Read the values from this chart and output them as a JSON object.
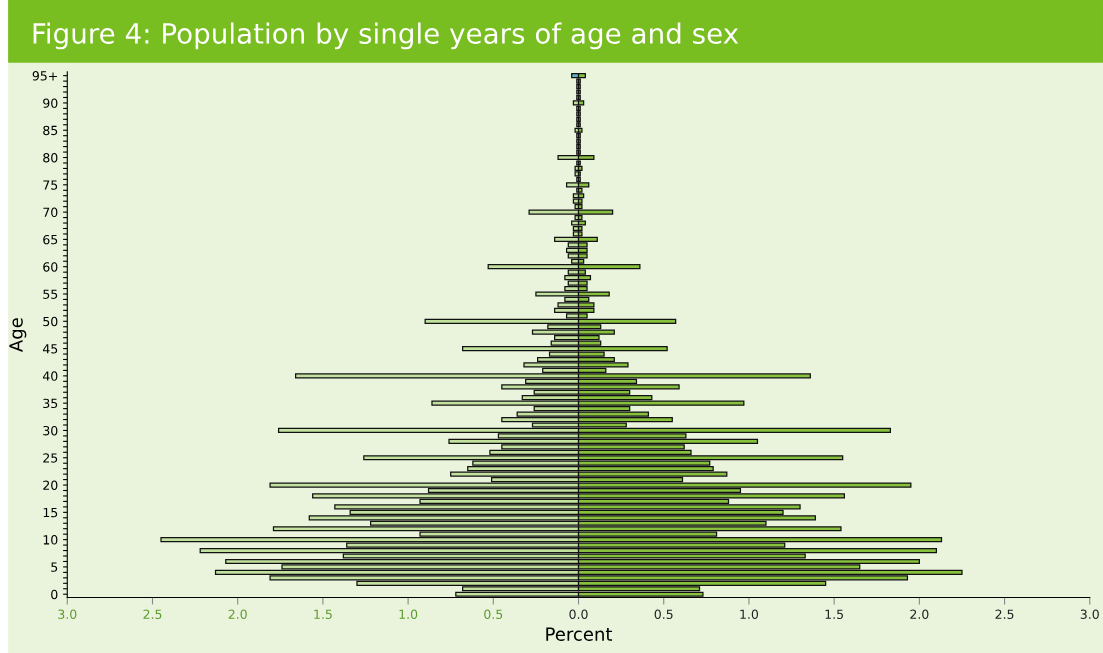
{
  "chart_data": {
    "type": "bar",
    "orientation": "horizontal",
    "title": "Figure 4: Population by single years of age and sex",
    "xlabel": "Percent",
    "ylabel": "Age",
    "categories": [
      "95+",
      null,
      null,
      null,
      null,
      "90",
      null,
      null,
      null,
      null,
      "85",
      null,
      null,
      null,
      null,
      "80",
      null,
      null,
      null,
      null,
      "75",
      null,
      null,
      null,
      null,
      "70",
      null,
      null,
      null,
      null,
      "65",
      null,
      null,
      null,
      null,
      "60",
      null,
      null,
      null,
      null,
      "55",
      null,
      null,
      null,
      null,
      "50",
      null,
      null,
      null,
      null,
      "45",
      null,
      null,
      null,
      null,
      "40",
      null,
      null,
      null,
      null,
      "35",
      null,
      null,
      null,
      null,
      "30",
      null,
      null,
      null,
      null,
      "25",
      null,
      null,
      null,
      null,
      "20",
      null,
      null,
      null,
      null,
      "15",
      null,
      null,
      null,
      null,
      "10",
      null,
      null,
      null,
      null,
      "5",
      null,
      null,
      null,
      null,
      "0"
    ],
    "series": [
      {
        "color": "#c3e19e",
        "colors": [
          "#5bb5c9",
          "#c3e19e",
          "#c3e19e",
          "#c3e19e",
          "#c3e19e",
          "#c3e19e",
          "#c3e19e",
          "#c3e19e",
          "#c3e19e",
          "#c3e19e",
          "#c3e19e",
          "#c3e19e",
          "#c3e19e",
          "#c3e19e",
          "#c3e19e",
          "#c3e19e",
          "#c3e19e",
          "#c3e19e",
          "#c3e19e",
          "#c3e19e",
          "#c3e19e",
          "#c3e19e",
          "#c3e19e",
          "#c3e19e",
          "#c3e19e",
          "#c3e19e",
          "#c3e19e",
          "#c3e19e",
          "#c3e19e",
          "#c3e19e",
          "#c3e19e",
          "#c3e19e",
          "#c3e19e",
          "#c3e19e",
          "#c3e19e",
          "#c3e19e",
          "#c3e19e",
          "#c3e19e",
          "#c3e19e",
          "#c3e19e",
          "#c3e19e",
          "#c3e19e",
          "#c3e19e",
          "#c3e19e",
          "#c3e19e",
          "#c3e19e",
          "#c3e19e",
          "#c3e19e",
          "#c3e19e",
          "#c3e19e",
          "#c3e19e",
          "#c3e19e",
          "#c3e19e",
          "#c3e19e",
          "#c3e19e",
          "#c3e19e",
          "#c3e19e",
          "#c3e19e",
          "#c3e19e",
          "#c3e19e",
          "#c3e19e",
          "#c3e19e",
          "#c3e19e",
          "#c3e19e",
          "#c3e19e",
          "#c3e19e",
          "#c3e19e",
          "#c3e19e",
          "#c3e19e",
          "#c3e19e",
          "#c3e19e",
          "#c3e19e",
          "#c3e19e",
          "#c3e19e",
          "#c3e19e",
          "#c3e19e",
          "#c3e19e",
          "#c3e19e",
          "#c3e19e",
          "#c3e19e",
          "#c3e19e",
          "#c3e19e",
          "#c3e19e",
          "#c3e19e",
          "#c3e19e",
          "#c3e19e",
          "#c3e19e",
          "#c3e19e",
          "#c3e19e",
          "#c3e19e",
          "#c3e19e",
          "#c3e19e",
          "#c3e19e",
          "#c3e19e",
          "#c3e19e",
          "#c3e19e"
        ],
        "values": [
          -0.04,
          -0.01,
          -0.01,
          -0.01,
          -0.01,
          -0.03,
          -0.01,
          -0.01,
          -0.01,
          -0.01,
          -0.02,
          -0.01,
          -0.01,
          -0.01,
          -0.01,
          -0.12,
          -0.01,
          -0.02,
          -0.02,
          -0.01,
          -0.07,
          -0.01,
          -0.03,
          -0.03,
          -0.02,
          -0.29,
          -0.02,
          -0.04,
          -0.03,
          -0.03,
          -0.14,
          -0.06,
          -0.07,
          -0.06,
          -0.04,
          -0.53,
          -0.06,
          -0.08,
          -0.06,
          -0.08,
          -0.25,
          -0.08,
          -0.12,
          -0.14,
          -0.07,
          -0.9,
          -0.18,
          -0.27,
          -0.14,
          -0.16,
          -0.68,
          -0.17,
          -0.24,
          -0.32,
          -0.21,
          -1.66,
          -0.31,
          -0.45,
          -0.26,
          -0.33,
          -0.86,
          -0.26,
          -0.36,
          -0.45,
          -0.27,
          -1.76,
          -0.47,
          -0.76,
          -0.45,
          -0.52,
          -1.26,
          -0.62,
          -0.65,
          -0.75,
          -0.51,
          -1.81,
          -0.88,
          -1.56,
          -0.93,
          -1.43,
          -1.34,
          -1.58,
          -1.22,
          -1.79,
          -0.93,
          -2.45,
          -1.36,
          -2.22,
          -1.38,
          -2.07,
          -1.74,
          -2.13,
          -1.81,
          -1.3,
          -0.68,
          -0.72
        ]
      },
      {
        "color": "#86c03c",
        "values": [
          0.04,
          0.01,
          0.01,
          0.01,
          0.01,
          0.03,
          0.01,
          0.01,
          0.01,
          0.01,
          0.02,
          0.01,
          0.01,
          0.01,
          0.01,
          0.09,
          0.01,
          0.02,
          0.01,
          0.01,
          0.06,
          0.02,
          0.03,
          0.02,
          0.02,
          0.2,
          0.02,
          0.04,
          0.02,
          0.02,
          0.11,
          0.05,
          0.05,
          0.05,
          0.03,
          0.36,
          0.04,
          0.07,
          0.05,
          0.05,
          0.18,
          0.06,
          0.09,
          0.09,
          0.05,
          0.57,
          0.13,
          0.21,
          0.12,
          0.13,
          0.52,
          0.15,
          0.21,
          0.29,
          0.16,
          1.36,
          0.34,
          0.59,
          0.3,
          0.43,
          0.97,
          0.3,
          0.41,
          0.55,
          0.28,
          1.83,
          0.63,
          1.05,
          0.62,
          0.66,
          1.55,
          0.77,
          0.79,
          0.87,
          0.61,
          1.95,
          0.95,
          1.56,
          0.88,
          1.3,
          1.2,
          1.39,
          1.1,
          1.54,
          0.81,
          2.13,
          1.21,
          2.1,
          1.33,
          2.0,
          1.65,
          2.25,
          1.93,
          1.45,
          0.71,
          0.73
        ]
      }
    ],
    "xlim": [
      -3,
      3
    ],
    "xticks": [
      {
        "value": -3,
        "label": "3.0"
      },
      {
        "value": -2.5,
        "label": "2.5"
      },
      {
        "value": -2,
        "label": "2.0"
      },
      {
        "value": -1.5,
        "label": "1.5"
      },
      {
        "value": -1,
        "label": "1.0"
      },
      {
        "value": -0.5,
        "label": "0.5"
      },
      {
        "value": 0,
        "label": "0.0"
      },
      {
        "value": 0.5,
        "label": "0.5"
      },
      {
        "value": 1,
        "label": "1.0"
      },
      {
        "value": 1.5,
        "label": "1.5"
      },
      {
        "value": 2,
        "label": "2.0"
      },
      {
        "value": 2.5,
        "label": "2.5"
      },
      {
        "value": 3,
        "label": "3.0"
      }
    ],
    "grid": false,
    "stacked": true
  }
}
